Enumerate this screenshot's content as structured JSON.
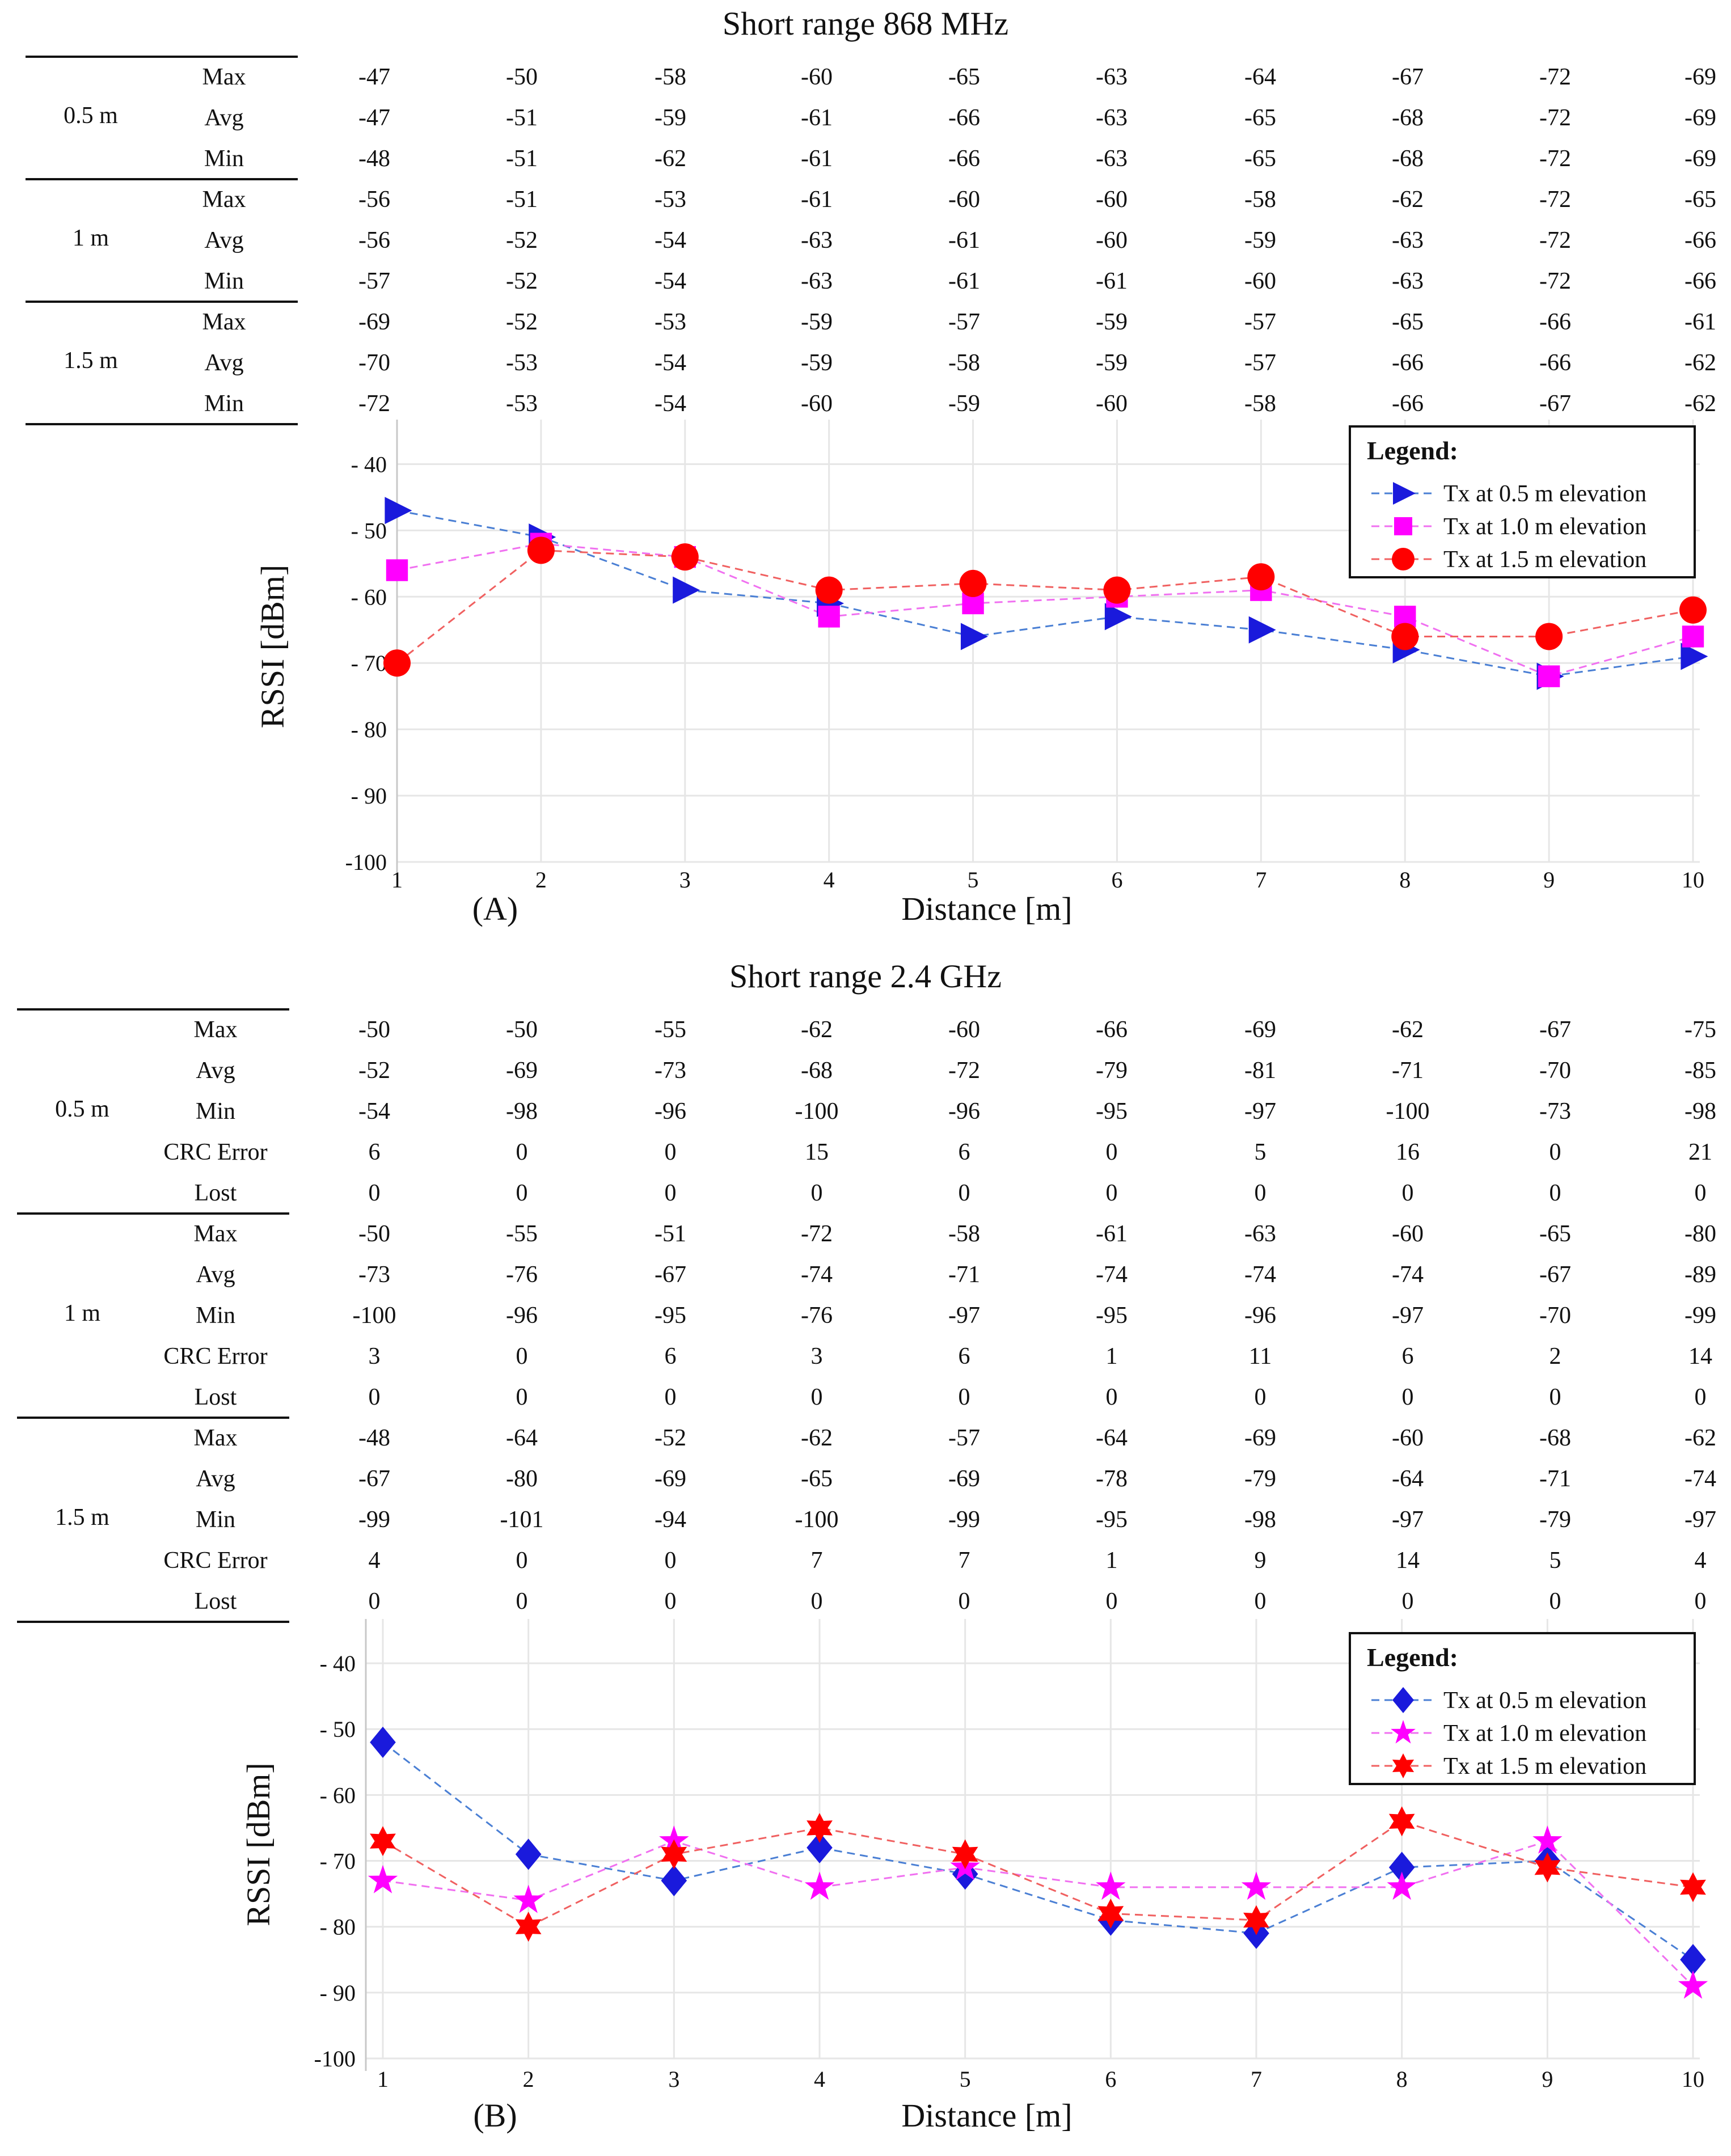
{
  "chart_data": [
    {
      "type": "line",
      "panel_label": "(A)",
      "title": "Short range 868 MHz",
      "xlabel": "Distance [m]",
      "ylabel": "RSSI [dBm]",
      "x": [
        1,
        2,
        3,
        4,
        5,
        6,
        7,
        8,
        9,
        10
      ],
      "ylim": [
        -100,
        -35
      ],
      "yticks": [
        -40,
        -50,
        -60,
        -70,
        -80,
        -90,
        -100
      ],
      "ytick_labels": [
        "- 40",
        "- 50",
        "- 60",
        "- 70",
        "- 80",
        "- 90",
        "-100"
      ],
      "grid": true,
      "legend_title": "Legend:",
      "legend_position": "top-right",
      "series": [
        {
          "name": "Tx at 0.5 m elevation",
          "color": "#1a1adc",
          "line": "#4a7fd4",
          "marker": "triangle-right",
          "values": [
            -47,
            -51,
            -59,
            -61,
            -66,
            -63,
            -65,
            -68,
            -72,
            -69
          ]
        },
        {
          "name": "Tx at 1.0 m elevation",
          "color": "#ff00ff",
          "line": "#f070f0",
          "marker": "square",
          "values": [
            -56,
            -52,
            -54,
            -63,
            -61,
            -60,
            -59,
            -63,
            -72,
            -66
          ]
        },
        {
          "name": "Tx at 1.5 m elevation",
          "color": "#ff0000",
          "line": "#f06060",
          "marker": "circle",
          "values": [
            -70,
            -53,
            -54,
            -59,
            -58,
            -59,
            -57,
            -66,
            -66,
            -62
          ]
        }
      ],
      "table": {
        "groups": [
          {
            "label": "0.5 m",
            "rows": [
              {
                "metric": "Max",
                "values": [
                  "-47",
                  "-50",
                  "-58",
                  "-60",
                  "-65",
                  "-63",
                  "-64",
                  "-67",
                  "-72",
                  "-69"
                ]
              },
              {
                "metric": "Avg",
                "values": [
                  "-47",
                  "-51",
                  "-59",
                  "-61",
                  "-66",
                  "-63",
                  "-65",
                  "-68",
                  "-72",
                  "-69"
                ]
              },
              {
                "metric": "Min",
                "values": [
                  "-48",
                  "-51",
                  "-62",
                  "-61",
                  "-66",
                  "-63",
                  "-65",
                  "-68",
                  "-72",
                  "-69"
                ]
              }
            ]
          },
          {
            "label": "1 m",
            "rows": [
              {
                "metric": "Max",
                "values": [
                  "-56",
                  "-51",
                  "-53",
                  "-61",
                  "-60",
                  "-60",
                  "-58",
                  "-62",
                  "-72",
                  "-65"
                ]
              },
              {
                "metric": "Avg",
                "values": [
                  "-56",
                  "-52",
                  "-54",
                  "-63",
                  "-61",
                  "-60",
                  "-59",
                  "-63",
                  "-72",
                  "-66"
                ]
              },
              {
                "metric": "Min",
                "values": [
                  "-57",
                  "-52",
                  "-54",
                  "-63",
                  "-61",
                  "-61",
                  "-60",
                  "-63",
                  "-72",
                  "-66"
                ]
              }
            ]
          },
          {
            "label": "1.5 m",
            "rows": [
              {
                "metric": "Max",
                "values": [
                  "-69",
                  "-52",
                  "-53",
                  "-59",
                  "-57",
                  "-59",
                  "-57",
                  "-65",
                  "-66",
                  "-61"
                ]
              },
              {
                "metric": "Avg",
                "values": [
                  "-70",
                  "-53",
                  "-54",
                  "-59",
                  "-58",
                  "-59",
                  "-57",
                  "-66",
                  "-66",
                  "-62"
                ]
              },
              {
                "metric": "Min",
                "values": [
                  "-72",
                  "-53",
                  "-54",
                  "-60",
                  "-59",
                  "-60",
                  "-58",
                  "-66",
                  "-67",
                  "-62"
                ]
              }
            ]
          }
        ]
      }
    },
    {
      "type": "line",
      "panel_label": "(B)",
      "title": "Short range 2.4 GHz",
      "xlabel": "Distance [m]",
      "ylabel": "RSSI [dBm]",
      "x": [
        1,
        2,
        3,
        4,
        5,
        6,
        7,
        8,
        9,
        10
      ],
      "ylim": [
        -100,
        -35
      ],
      "yticks": [
        -40,
        -50,
        -60,
        -70,
        -80,
        -90,
        -100
      ],
      "ytick_labels": [
        "- 40",
        "- 50",
        "- 60",
        "- 70",
        "- 80",
        "- 90",
        "-100"
      ],
      "grid": true,
      "legend_title": "Legend:",
      "legend_position": "top-right",
      "series": [
        {
          "name": "Tx at 0.5 m elevation",
          "color": "#1a1adc",
          "line": "#4a7fd4",
          "marker": "diamond",
          "values": [
            -52,
            -69,
            -73,
            -68,
            -72,
            -79,
            -81,
            -71,
            -70,
            -85
          ]
        },
        {
          "name": "Tx at 1.0 m elevation",
          "color": "#ff00ff",
          "line": "#f070f0",
          "marker": "star5",
          "values": [
            -73,
            -76,
            -67,
            -74,
            -71,
            -74,
            -74,
            -74,
            -67,
            -89
          ]
        },
        {
          "name": "Tx at 1.5 m elevation",
          "color": "#ff0000",
          "line": "#f06060",
          "marker": "star6",
          "values": [
            -67,
            -80,
            -69,
            -65,
            -69,
            -78,
            -79,
            -64,
            -71,
            -74
          ]
        }
      ],
      "table": {
        "groups": [
          {
            "label": "0.5 m",
            "rows": [
              {
                "metric": "Max",
                "values": [
                  "-50",
                  "-50",
                  "-55",
                  "-62",
                  "-60",
                  "-66",
                  "-69",
                  "-62",
                  "-67",
                  "-75"
                ]
              },
              {
                "metric": "Avg",
                "values": [
                  "-52",
                  "-69",
                  "-73",
                  "-68",
                  "-72",
                  "-79",
                  "-81",
                  "-71",
                  "-70",
                  "-85"
                ]
              },
              {
                "metric": "Min",
                "values": [
                  "-54",
                  "-98",
                  "-96",
                  "-100",
                  "-96",
                  "-95",
                  "-97",
                  "-100",
                  "-73",
                  "-98"
                ]
              },
              {
                "metric": "CRC Error",
                "values": [
                  "6",
                  "0",
                  "0",
                  "15",
                  "6",
                  "0",
                  "5",
                  "16",
                  "0",
                  "21"
                ]
              },
              {
                "metric": "Lost",
                "values": [
                  "0",
                  "0",
                  "0",
                  "0",
                  "0",
                  "0",
                  "0",
                  "0",
                  "0",
                  "0"
                ]
              }
            ]
          },
          {
            "label": "1 m",
            "rows": [
              {
                "metric": "Max",
                "values": [
                  "-50",
                  "-55",
                  "-51",
                  "-72",
                  "-58",
                  "-61",
                  "-63",
                  "-60",
                  "-65",
                  "-80"
                ]
              },
              {
                "metric": "Avg",
                "values": [
                  "-73",
                  "-76",
                  "-67",
                  "-74",
                  "-71",
                  "-74",
                  "-74",
                  "-74",
                  "-67",
                  "-89"
                ]
              },
              {
                "metric": "Min",
                "values": [
                  "-100",
                  "-96",
                  "-95",
                  "-76",
                  "-97",
                  "-95",
                  "-96",
                  "-97",
                  "-70",
                  "-99"
                ]
              },
              {
                "metric": "CRC Error",
                "values": [
                  "3",
                  "0",
                  "6",
                  "3",
                  "6",
                  "1",
                  "11",
                  "6",
                  "2",
                  "14"
                ]
              },
              {
                "metric": "Lost",
                "values": [
                  "0",
                  "0",
                  "0",
                  "0",
                  "0",
                  "0",
                  "0",
                  "0",
                  "0",
                  "0"
                ]
              }
            ]
          },
          {
            "label": "1.5 m",
            "rows": [
              {
                "metric": "Max",
                "values": [
                  "-48",
                  "-64",
                  "-52",
                  "-62",
                  "-57",
                  "-64",
                  "-69",
                  "-60",
                  "-68",
                  "-62"
                ]
              },
              {
                "metric": "Avg",
                "values": [
                  "-67",
                  "-80",
                  "-69",
                  "-65",
                  "-69",
                  "-78",
                  "-79",
                  "-64",
                  "-71",
                  "-74"
                ]
              },
              {
                "metric": "Min",
                "values": [
                  "-99",
                  "-101",
                  "-94",
                  "-100",
                  "-99",
                  "-95",
                  "-98",
                  "-97",
                  "-79",
                  "-97"
                ]
              },
              {
                "metric": "CRC Error",
                "values": [
                  "4",
                  "0",
                  "0",
                  "7",
                  "7",
                  "1",
                  "9",
                  "14",
                  "5",
                  "4"
                ]
              },
              {
                "metric": "Lost",
                "values": [
                  "0",
                  "0",
                  "0",
                  "0",
                  "0",
                  "0",
                  "0",
                  "0",
                  "0",
                  "0"
                ]
              }
            ]
          }
        ]
      }
    }
  ]
}
